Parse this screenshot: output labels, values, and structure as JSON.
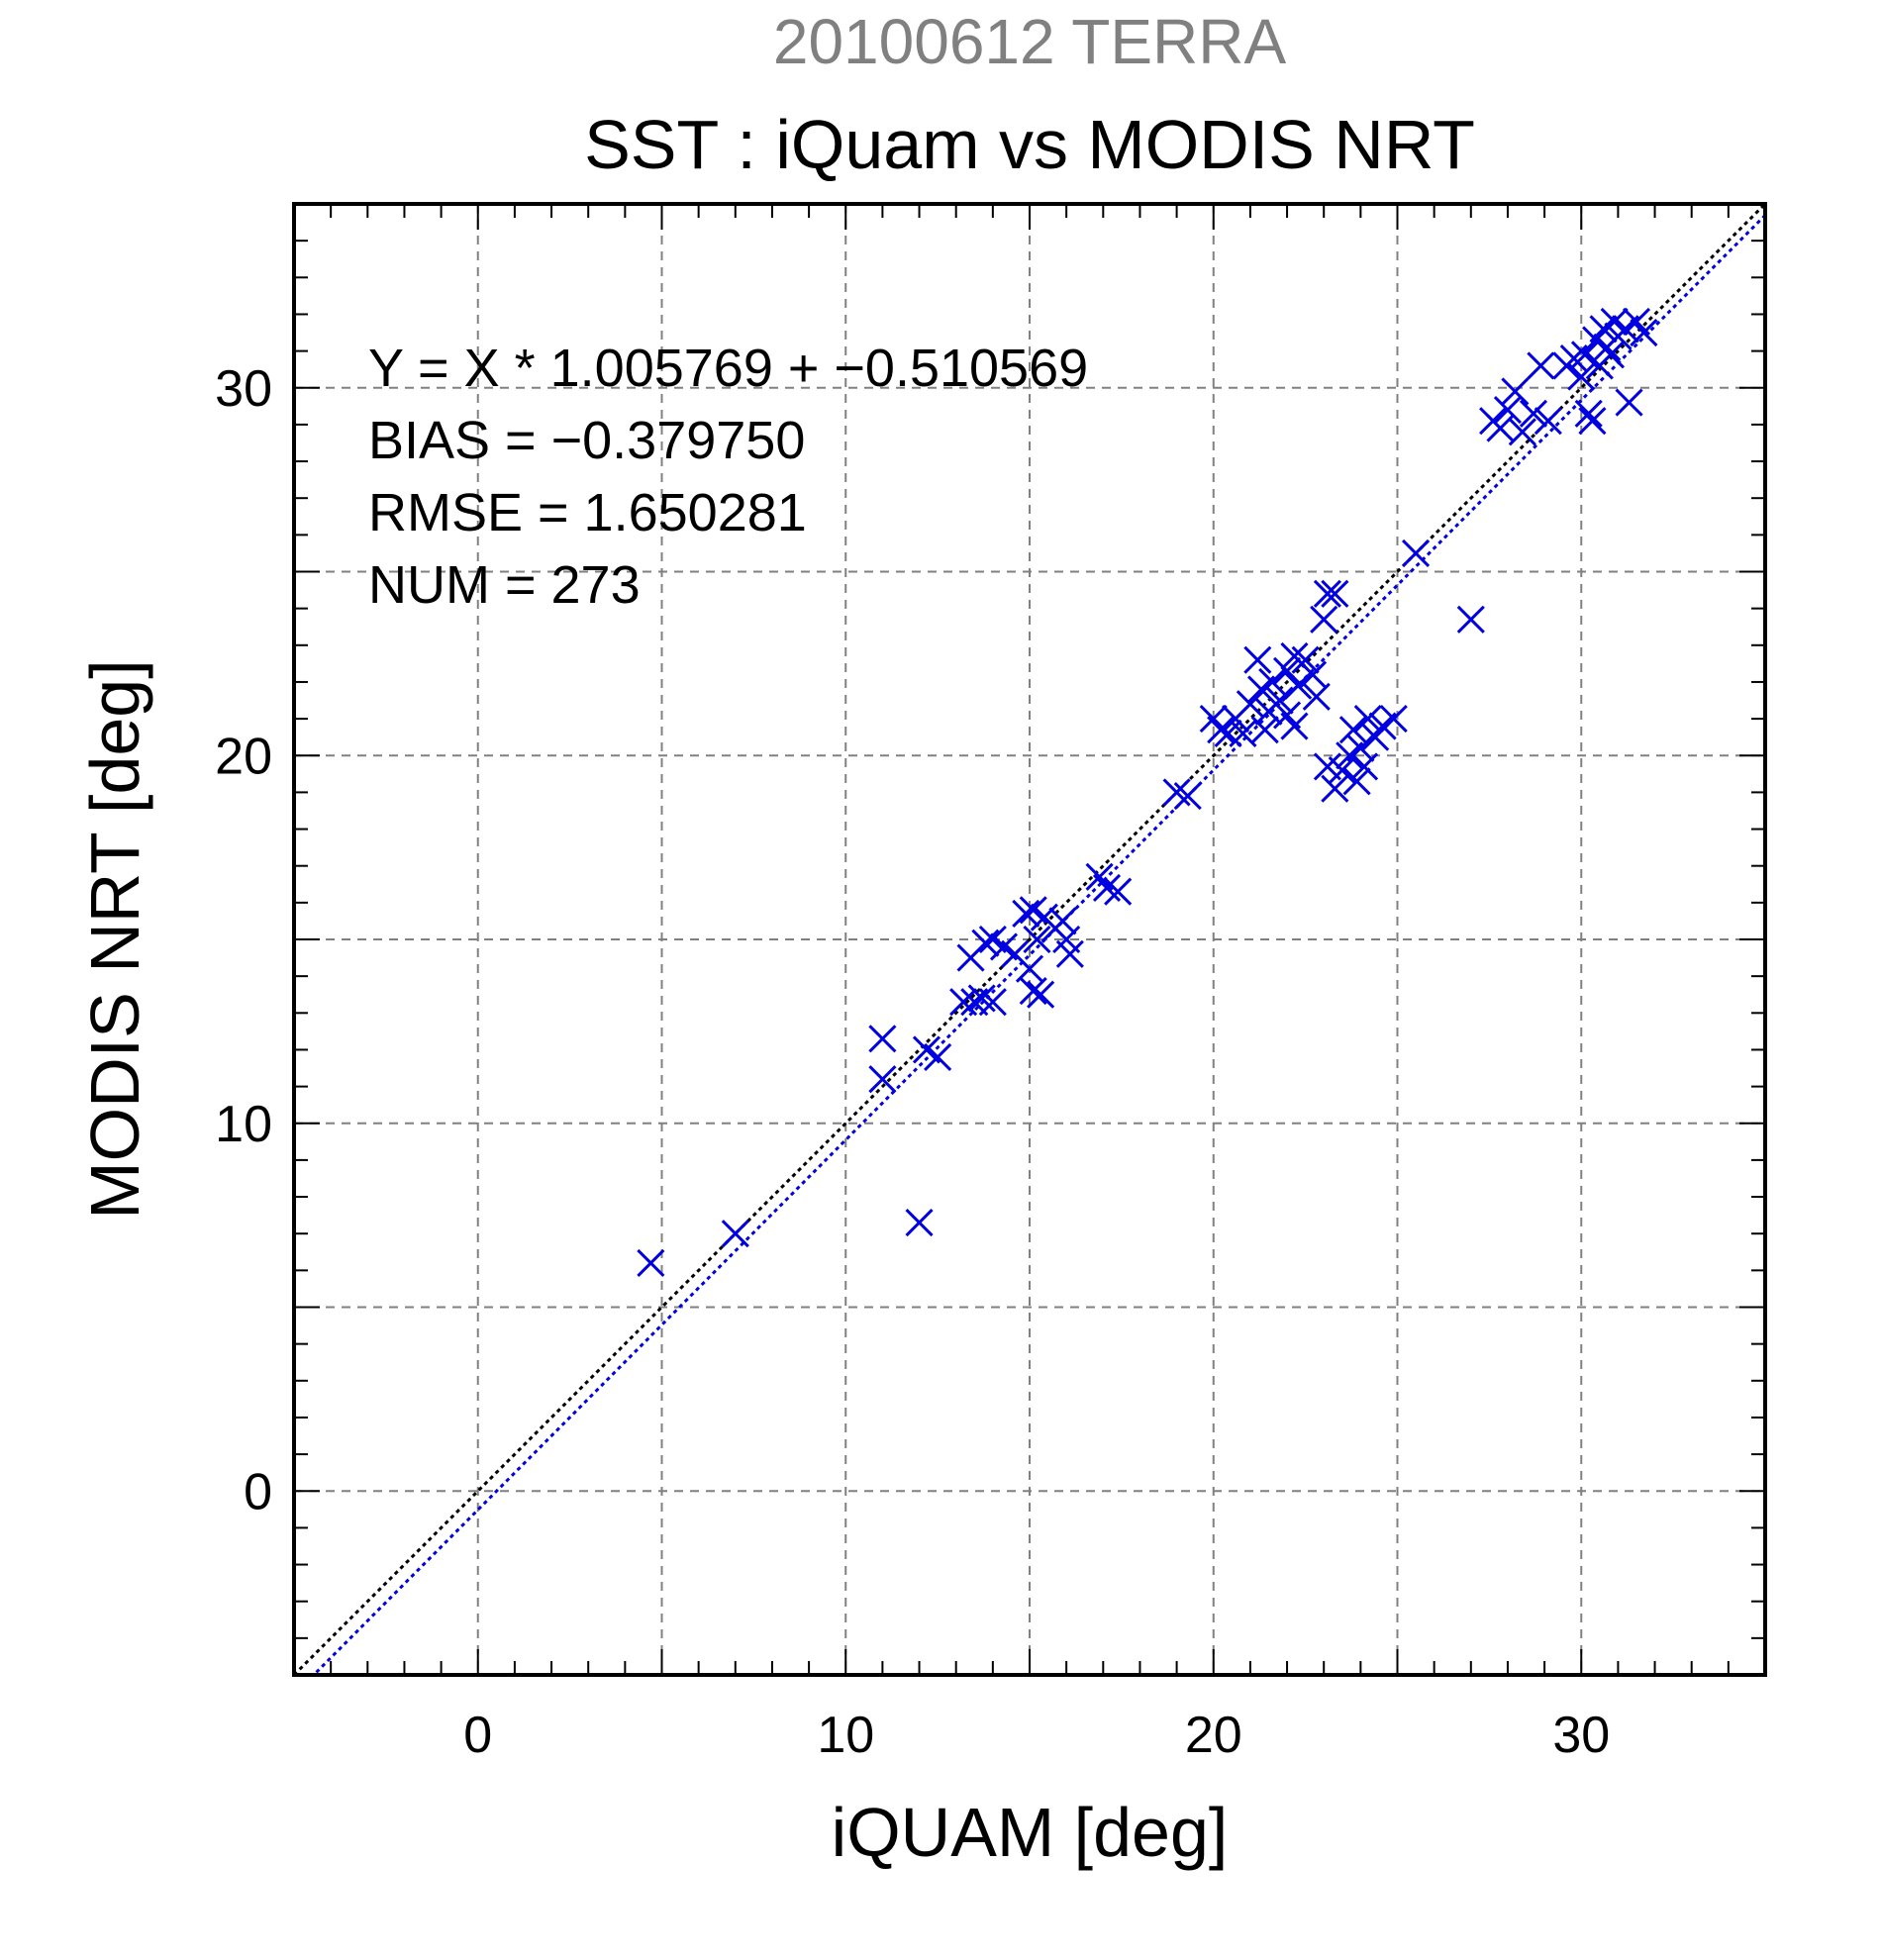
{
  "chart_data": {
    "type": "scatter",
    "supertitle": "20100612 TERRA",
    "title": "SST : iQuam vs MODIS NRT",
    "xlabel": "iQUAM [deg]",
    "ylabel": "MODIS NRT [deg]",
    "xlim": [
      -5,
      35
    ],
    "ylim": [
      -5,
      35
    ],
    "xticks": [
      0,
      10,
      20,
      30
    ],
    "yticks": [
      0,
      10,
      20,
      30
    ],
    "grid": true,
    "colors": {
      "points": "#0000e0",
      "identity_line": "#000000",
      "fit_line": "#0000e0",
      "frame": "#000000",
      "grid": "#808080",
      "supertitle": "#808080"
    },
    "marker": "x",
    "stats": [
      "Y = X * 1.005769 + −0.510569",
      "BIAS = −0.379750",
      "RMSE = 1.650281",
      "NUM = 273"
    ],
    "reference_lines": [
      {
        "kind": "identity",
        "slope": 1,
        "intercept": 0,
        "style": "dotted",
        "color": "#000000"
      },
      {
        "kind": "regression",
        "slope": 1.005769,
        "intercept": -0.510569,
        "style": "dotted",
        "color": "#0000e0"
      }
    ],
    "points": [
      [
        4.7,
        6.2
      ],
      [
        7.0,
        7.0
      ],
      [
        12.0,
        7.3
      ],
      [
        11.0,
        12.3
      ],
      [
        11.0,
        11.2
      ],
      [
        12.2,
        12.0
      ],
      [
        12.5,
        11.8
      ],
      [
        13.2,
        13.3
      ],
      [
        13.5,
        13.3
      ],
      [
        13.7,
        13.4
      ],
      [
        14.0,
        13.3
      ],
      [
        13.4,
        14.5
      ],
      [
        13.8,
        14.9
      ],
      [
        14.0,
        15.0
      ],
      [
        14.3,
        14.8
      ],
      [
        14.6,
        14.6
      ],
      [
        14.9,
        15.7
      ],
      [
        15.1,
        15.8
      ],
      [
        15.4,
        15.6
      ],
      [
        15.2,
        15.0
      ],
      [
        15.0,
        14.2
      ],
      [
        15.1,
        13.6
      ],
      [
        15.3,
        13.5
      ],
      [
        15.7,
        15.3
      ],
      [
        16.0,
        15.0
      ],
      [
        16.1,
        14.6
      ],
      [
        15.9,
        15.5
      ],
      [
        16.9,
        16.7
      ],
      [
        17.1,
        16.4
      ],
      [
        17.4,
        16.3
      ],
      [
        19.0,
        19.0
      ],
      [
        19.3,
        18.9
      ],
      [
        20.0,
        21.0
      ],
      [
        20.2,
        20.7
      ],
      [
        20.4,
        20.6
      ],
      [
        20.6,
        21.0
      ],
      [
        20.8,
        20.6
      ],
      [
        21.0,
        21.4
      ],
      [
        21.2,
        22.6
      ],
      [
        21.3,
        21.8
      ],
      [
        21.5,
        21.2
      ],
      [
        21.6,
        22.0
      ],
      [
        21.8,
        21.5
      ],
      [
        22.0,
        22.3
      ],
      [
        22.2,
        22.7
      ],
      [
        22.3,
        21.9
      ],
      [
        22.5,
        22.6
      ],
      [
        22.7,
        22.2
      ],
      [
        22.8,
        21.6
      ],
      [
        21.4,
        20.7
      ],
      [
        22.0,
        21.1
      ],
      [
        22.2,
        20.8
      ],
      [
        23.0,
        23.7
      ],
      [
        23.1,
        24.4
      ],
      [
        23.3,
        24.4
      ],
      [
        23.1,
        19.7
      ],
      [
        23.3,
        19.1
      ],
      [
        23.5,
        19.6
      ],
      [
        23.7,
        20.0
      ],
      [
        23.8,
        20.7
      ],
      [
        23.9,
        19.3
      ],
      [
        24.0,
        20.2
      ],
      [
        24.1,
        19.7
      ],
      [
        24.2,
        21.0
      ],
      [
        24.4,
        20.5
      ],
      [
        24.6,
        20.8
      ],
      [
        24.9,
        21.0
      ],
      [
        25.5,
        25.5
      ],
      [
        27.0,
        23.7
      ],
      [
        27.6,
        29.1
      ],
      [
        27.8,
        28.9
      ],
      [
        28.0,
        29.4
      ],
      [
        28.2,
        29.9
      ],
      [
        28.4,
        28.8
      ],
      [
        28.7,
        29.3
      ],
      [
        28.9,
        30.6
      ],
      [
        29.1,
        29.1
      ],
      [
        29.6,
        30.6
      ],
      [
        29.8,
        30.8
      ],
      [
        30.0,
        30.3
      ],
      [
        30.1,
        30.9
      ],
      [
        30.2,
        29.3
      ],
      [
        30.3,
        29.1
      ],
      [
        30.4,
        31.3
      ],
      [
        30.5,
        30.6
      ],
      [
        30.6,
        31.6
      ],
      [
        30.7,
        31.1
      ],
      [
        30.8,
        30.9
      ],
      [
        30.9,
        31.8
      ],
      [
        31.0,
        31.4
      ],
      [
        31.2,
        31.6
      ],
      [
        31.3,
        29.6
      ],
      [
        31.5,
        31.8
      ],
      [
        31.7,
        31.5
      ]
    ]
  }
}
